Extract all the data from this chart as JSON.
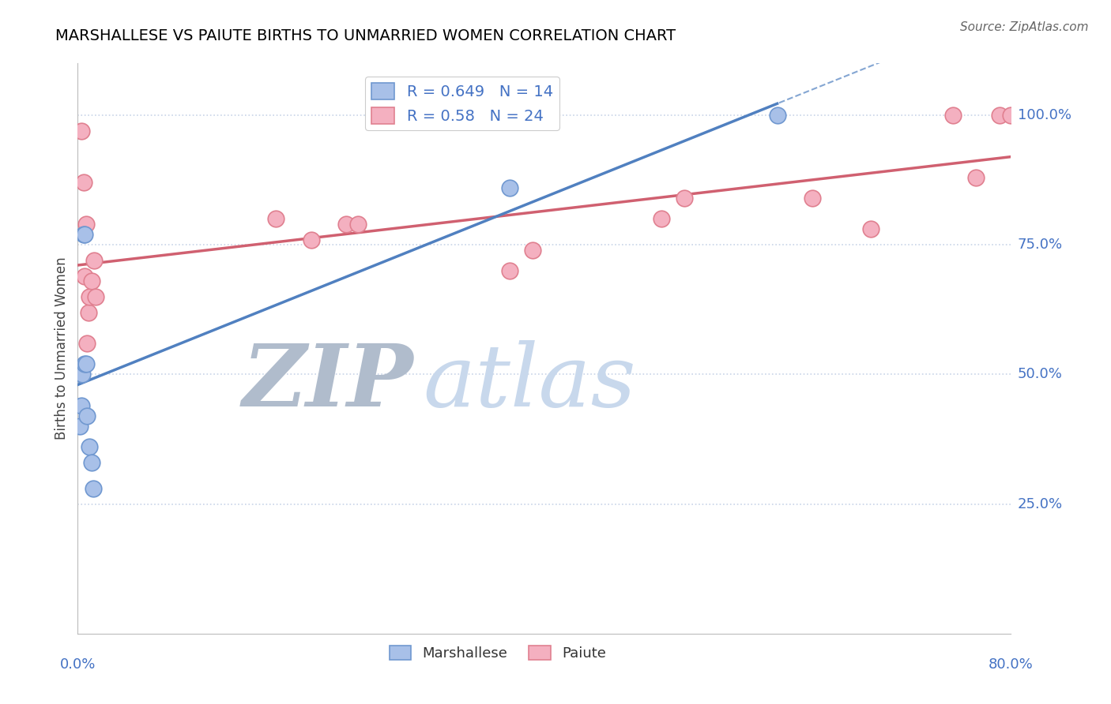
{
  "title": "MARSHALLESE VS PAIUTE BIRTHS TO UNMARRIED WOMEN CORRELATION CHART",
  "source": "Source: ZipAtlas.com",
  "ylabel": "Births to Unmarried Women",
  "marshallese": {
    "R": 0.649,
    "N": 14,
    "line_color": "#5080C0",
    "fill_color": "#A8C0E8",
    "edge_color": "#7098D0",
    "x": [
      0.002,
      0.003,
      0.003,
      0.004,
      0.005,
      0.006,
      0.006,
      0.007,
      0.008,
      0.01,
      0.012,
      0.013,
      0.37,
      0.6
    ],
    "y": [
      0.4,
      0.44,
      0.5,
      0.5,
      0.77,
      0.77,
      0.52,
      0.52,
      0.42,
      0.36,
      0.33,
      0.28,
      0.86,
      1.0
    ]
  },
  "paiute": {
    "R": 0.58,
    "N": 24,
    "line_color": "#D06070",
    "fill_color": "#F4B0C0",
    "edge_color": "#E08090",
    "x": [
      0.003,
      0.005,
      0.006,
      0.007,
      0.008,
      0.009,
      0.01,
      0.012,
      0.014,
      0.015,
      0.17,
      0.2,
      0.23,
      0.24,
      0.37,
      0.39,
      0.5,
      0.52,
      0.63,
      0.68,
      0.75,
      0.77,
      0.79,
      0.8
    ],
    "y": [
      0.97,
      0.87,
      0.69,
      0.79,
      0.56,
      0.62,
      0.65,
      0.68,
      0.72,
      0.65,
      0.8,
      0.76,
      0.79,
      0.79,
      0.7,
      0.74,
      0.8,
      0.84,
      0.84,
      0.78,
      1.0,
      0.88,
      1.0,
      1.0
    ]
  },
  "xlim": [
    0.0,
    0.8
  ],
  "ylim": [
    0.0,
    1.1
  ],
  "yticks": [
    0.25,
    0.5,
    0.75,
    1.0
  ],
  "ytick_labels": [
    "25.0%",
    "50.0%",
    "75.0%",
    "100.0%"
  ],
  "grid_color": "#C8D4E8",
  "bg_color": "#FFFFFF",
  "label_color": "#4472C4",
  "title_color": "#000000",
  "watermark_zip_color": "#B0BCCC",
  "watermark_atlas_color": "#C8D8EC"
}
